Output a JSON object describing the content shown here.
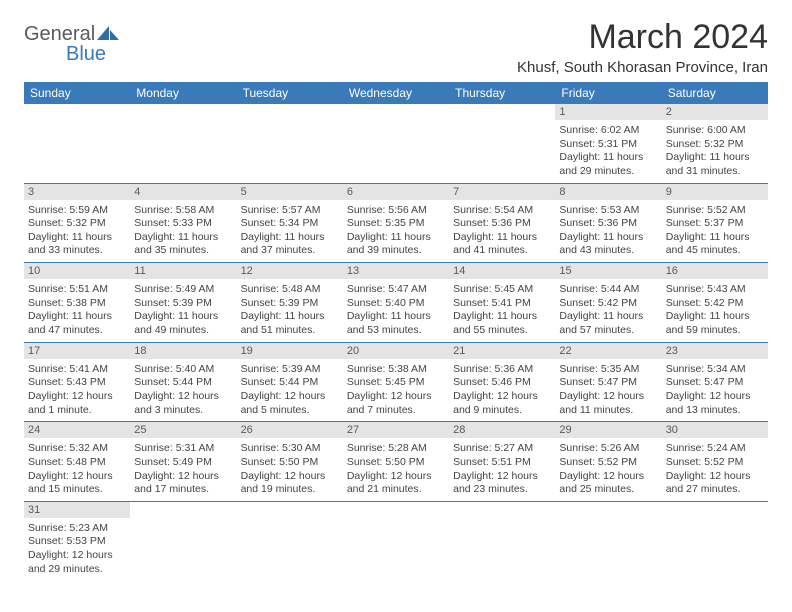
{
  "logo": {
    "general": "General",
    "blue": "Blue"
  },
  "title": "March 2024",
  "location": "Khusf, South Khorasan Province, Iran",
  "colors": {
    "header_bg": "#3a7ab8",
    "header_fg": "#ffffff",
    "daynum_bg": "#e4e4e4",
    "border": "#3a7ab8"
  },
  "weekdays": [
    "Sunday",
    "Monday",
    "Tuesday",
    "Wednesday",
    "Thursday",
    "Friday",
    "Saturday"
  ],
  "weeks": [
    [
      null,
      null,
      null,
      null,
      null,
      {
        "d": "1",
        "r": "Sunrise: 6:02 AM",
        "s": "Sunset: 5:31 PM",
        "l1": "Daylight: 11 hours",
        "l2": "and 29 minutes."
      },
      {
        "d": "2",
        "r": "Sunrise: 6:00 AM",
        "s": "Sunset: 5:32 PM",
        "l1": "Daylight: 11 hours",
        "l2": "and 31 minutes."
      }
    ],
    [
      {
        "d": "3",
        "r": "Sunrise: 5:59 AM",
        "s": "Sunset: 5:32 PM",
        "l1": "Daylight: 11 hours",
        "l2": "and 33 minutes."
      },
      {
        "d": "4",
        "r": "Sunrise: 5:58 AM",
        "s": "Sunset: 5:33 PM",
        "l1": "Daylight: 11 hours",
        "l2": "and 35 minutes."
      },
      {
        "d": "5",
        "r": "Sunrise: 5:57 AM",
        "s": "Sunset: 5:34 PM",
        "l1": "Daylight: 11 hours",
        "l2": "and 37 minutes."
      },
      {
        "d": "6",
        "r": "Sunrise: 5:56 AM",
        "s": "Sunset: 5:35 PM",
        "l1": "Daylight: 11 hours",
        "l2": "and 39 minutes."
      },
      {
        "d": "7",
        "r": "Sunrise: 5:54 AM",
        "s": "Sunset: 5:36 PM",
        "l1": "Daylight: 11 hours",
        "l2": "and 41 minutes."
      },
      {
        "d": "8",
        "r": "Sunrise: 5:53 AM",
        "s": "Sunset: 5:36 PM",
        "l1": "Daylight: 11 hours",
        "l2": "and 43 minutes."
      },
      {
        "d": "9",
        "r": "Sunrise: 5:52 AM",
        "s": "Sunset: 5:37 PM",
        "l1": "Daylight: 11 hours",
        "l2": "and 45 minutes."
      }
    ],
    [
      {
        "d": "10",
        "r": "Sunrise: 5:51 AM",
        "s": "Sunset: 5:38 PM",
        "l1": "Daylight: 11 hours",
        "l2": "and 47 minutes."
      },
      {
        "d": "11",
        "r": "Sunrise: 5:49 AM",
        "s": "Sunset: 5:39 PM",
        "l1": "Daylight: 11 hours",
        "l2": "and 49 minutes."
      },
      {
        "d": "12",
        "r": "Sunrise: 5:48 AM",
        "s": "Sunset: 5:39 PM",
        "l1": "Daylight: 11 hours",
        "l2": "and 51 minutes."
      },
      {
        "d": "13",
        "r": "Sunrise: 5:47 AM",
        "s": "Sunset: 5:40 PM",
        "l1": "Daylight: 11 hours",
        "l2": "and 53 minutes."
      },
      {
        "d": "14",
        "r": "Sunrise: 5:45 AM",
        "s": "Sunset: 5:41 PM",
        "l1": "Daylight: 11 hours",
        "l2": "and 55 minutes."
      },
      {
        "d": "15",
        "r": "Sunrise: 5:44 AM",
        "s": "Sunset: 5:42 PM",
        "l1": "Daylight: 11 hours",
        "l2": "and 57 minutes."
      },
      {
        "d": "16",
        "r": "Sunrise: 5:43 AM",
        "s": "Sunset: 5:42 PM",
        "l1": "Daylight: 11 hours",
        "l2": "and 59 minutes."
      }
    ],
    [
      {
        "d": "17",
        "r": "Sunrise: 5:41 AM",
        "s": "Sunset: 5:43 PM",
        "l1": "Daylight: 12 hours",
        "l2": "and 1 minute."
      },
      {
        "d": "18",
        "r": "Sunrise: 5:40 AM",
        "s": "Sunset: 5:44 PM",
        "l1": "Daylight: 12 hours",
        "l2": "and 3 minutes."
      },
      {
        "d": "19",
        "r": "Sunrise: 5:39 AM",
        "s": "Sunset: 5:44 PM",
        "l1": "Daylight: 12 hours",
        "l2": "and 5 minutes."
      },
      {
        "d": "20",
        "r": "Sunrise: 5:38 AM",
        "s": "Sunset: 5:45 PM",
        "l1": "Daylight: 12 hours",
        "l2": "and 7 minutes."
      },
      {
        "d": "21",
        "r": "Sunrise: 5:36 AM",
        "s": "Sunset: 5:46 PM",
        "l1": "Daylight: 12 hours",
        "l2": "and 9 minutes."
      },
      {
        "d": "22",
        "r": "Sunrise: 5:35 AM",
        "s": "Sunset: 5:47 PM",
        "l1": "Daylight: 12 hours",
        "l2": "and 11 minutes."
      },
      {
        "d": "23",
        "r": "Sunrise: 5:34 AM",
        "s": "Sunset: 5:47 PM",
        "l1": "Daylight: 12 hours",
        "l2": "and 13 minutes."
      }
    ],
    [
      {
        "d": "24",
        "r": "Sunrise: 5:32 AM",
        "s": "Sunset: 5:48 PM",
        "l1": "Daylight: 12 hours",
        "l2": "and 15 minutes."
      },
      {
        "d": "25",
        "r": "Sunrise: 5:31 AM",
        "s": "Sunset: 5:49 PM",
        "l1": "Daylight: 12 hours",
        "l2": "and 17 minutes."
      },
      {
        "d": "26",
        "r": "Sunrise: 5:30 AM",
        "s": "Sunset: 5:50 PM",
        "l1": "Daylight: 12 hours",
        "l2": "and 19 minutes."
      },
      {
        "d": "27",
        "r": "Sunrise: 5:28 AM",
        "s": "Sunset: 5:50 PM",
        "l1": "Daylight: 12 hours",
        "l2": "and 21 minutes."
      },
      {
        "d": "28",
        "r": "Sunrise: 5:27 AM",
        "s": "Sunset: 5:51 PM",
        "l1": "Daylight: 12 hours",
        "l2": "and 23 minutes."
      },
      {
        "d": "29",
        "r": "Sunrise: 5:26 AM",
        "s": "Sunset: 5:52 PM",
        "l1": "Daylight: 12 hours",
        "l2": "and 25 minutes."
      },
      {
        "d": "30",
        "r": "Sunrise: 5:24 AM",
        "s": "Sunset: 5:52 PM",
        "l1": "Daylight: 12 hours",
        "l2": "and 27 minutes."
      }
    ],
    [
      {
        "d": "31",
        "r": "Sunrise: 5:23 AM",
        "s": "Sunset: 5:53 PM",
        "l1": "Daylight: 12 hours",
        "l2": "and 29 minutes."
      },
      null,
      null,
      null,
      null,
      null,
      null
    ]
  ]
}
